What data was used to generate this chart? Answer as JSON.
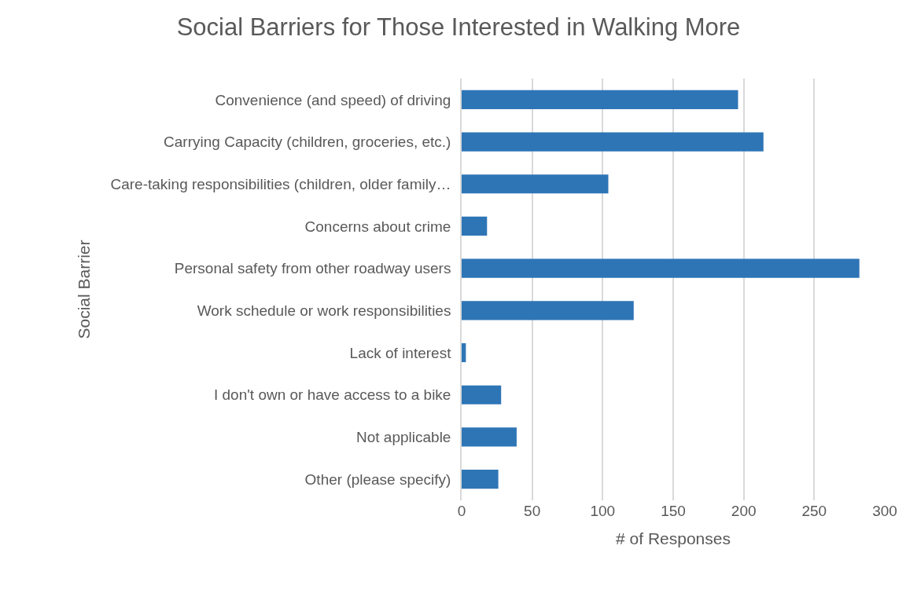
{
  "chart_data": {
    "type": "bar",
    "orientation": "horizontal",
    "title": "Social Barriers for Those Interested in Walking More",
    "xlabel": "# of Responses",
    "ylabel": "Social Barrier",
    "categories": [
      "Convenience (and speed) of driving",
      "Carrying Capacity (children, groceries, etc.)",
      "Care-taking responsibilities (children, older family…",
      "Concerns about crime",
      "Personal safety from other roadway users",
      "Work schedule or work responsibilities",
      "Lack of interest",
      "I don't own or have access to a bike",
      "Not applicable",
      "Other (please specify)"
    ],
    "values": [
      196,
      214,
      104,
      18,
      282,
      122,
      3,
      28,
      39,
      26
    ],
    "color": "#2e75b6",
    "xlim": [
      0,
      300
    ],
    "xticks": [
      0,
      50,
      100,
      150,
      200,
      250,
      300
    ],
    "grid": "x",
    "legend": false
  }
}
